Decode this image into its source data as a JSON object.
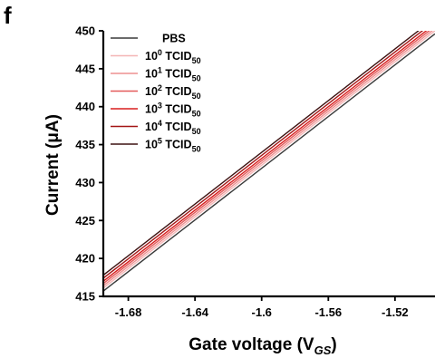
{
  "panel_label": "f",
  "chart_data": {
    "type": "line",
    "xlabel": "Gate voltage (V",
    "xlabel_sub": "GS",
    "xlabel_close": ")",
    "ylabel": "Current (μA)",
    "xlim": [
      -1.695,
      -1.496
    ],
    "ylim": [
      415,
      450
    ],
    "xticks": [
      -1.68,
      -1.64,
      -1.6,
      -1.56,
      -1.52
    ],
    "xtick_labels": [
      "-1.68",
      "-1.64",
      "-1.6",
      "-1.56",
      "-1.52"
    ],
    "yticks": [
      415,
      420,
      425,
      430,
      435,
      440,
      445,
      450
    ],
    "ytick_labels": [
      "415",
      "420",
      "425",
      "430",
      "435",
      "440",
      "445",
      "450"
    ],
    "legend_position": "top-left",
    "series": [
      {
        "name": "PBS",
        "legend_base": "PBS",
        "legend_sup": "",
        "legend_sub": "",
        "color": "#3a3a3a",
        "x": [
          -1.695,
          -1.496
        ],
        "y": [
          415.7,
          449.6
        ]
      },
      {
        "name": "10^0 TCID50",
        "legend_base": "10",
        "legend_sup": "0",
        "legend_sub": "50",
        "color": "#f4b6b6",
        "x": [
          -1.695,
          -1.496
        ],
        "y": [
          416.1,
          450.0
        ]
      },
      {
        "name": "10^1 TCID50",
        "legend_base": "10",
        "legend_sup": "1",
        "legend_sub": "50",
        "color": "#ee9090",
        "x": [
          -1.695,
          -1.496
        ],
        "y": [
          416.4,
          450.3
        ]
      },
      {
        "name": "10^2 TCID50",
        "legend_base": "10",
        "legend_sup": "2",
        "legend_sub": "50",
        "color": "#e45a5a",
        "x": [
          -1.695,
          -1.496
        ],
        "y": [
          416.7,
          450.6
        ]
      },
      {
        "name": "10^3 TCID50",
        "legend_base": "10",
        "legend_sup": "3",
        "legend_sub": "50",
        "color": "#d81e1e",
        "x": [
          -1.695,
          -1.496
        ],
        "y": [
          417.0,
          450.9
        ]
      },
      {
        "name": "10^4 TCID50",
        "legend_base": "10",
        "legend_sup": "4",
        "legend_sub": "50",
        "color": "#a31515",
        "x": [
          -1.695,
          -1.496
        ],
        "y": [
          417.4,
          451.3
        ]
      },
      {
        "name": "10^5 TCID50",
        "legend_base": "10",
        "legend_sup": "5",
        "legend_sub": "50",
        "color": "#3d1212",
        "x": [
          -1.695,
          -1.496
        ],
        "y": [
          417.8,
          451.7
        ]
      }
    ],
    "legend_text_mid": " TCID"
  }
}
